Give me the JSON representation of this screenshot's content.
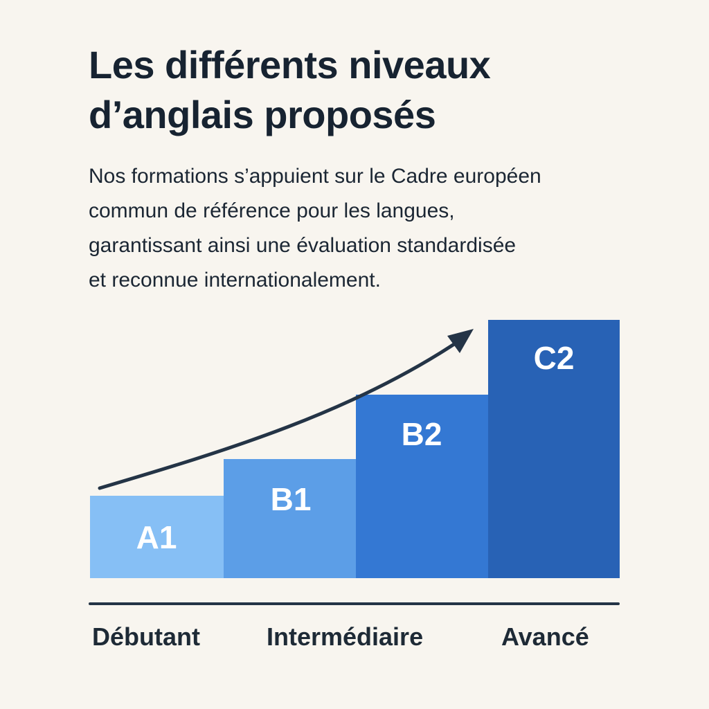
{
  "title": {
    "line1": "Les différents niveaux",
    "line2": "d’anglais proposés"
  },
  "intro": {
    "line1": "Nos formations s’appuient sur le Cadre européen",
    "line2": "commun de référence pour les langues,",
    "line3": "garantissant ainsi une évaluation standardisée",
    "line4": "et reconnue internationalement."
  },
  "levels": [
    {
      "code": "A1",
      "color": "#86bff5"
    },
    {
      "code": "B1",
      "color": "#5c9ee7"
    },
    {
      "code": "B2",
      "color": "#3478d3"
    },
    {
      "code": "C2",
      "color": "#2862b5"
    }
  ],
  "stages": [
    {
      "label": "Débutant"
    },
    {
      "label": "Intermédiaire"
    },
    {
      "label": "Avancé"
    }
  ],
  "colors": {
    "background": "#f8f5ef",
    "text": "#172331",
    "arrow": "#243446",
    "level_label": "#ffffff"
  }
}
